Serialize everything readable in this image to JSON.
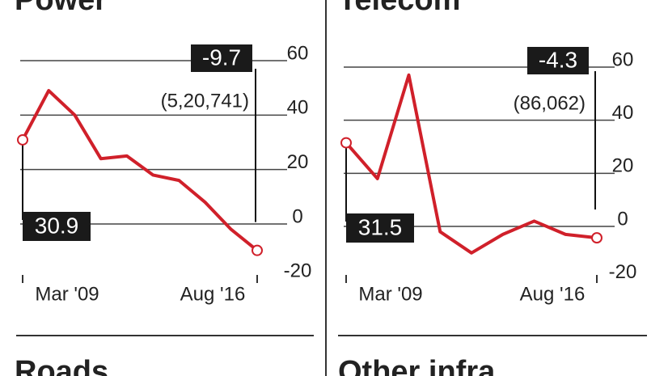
{
  "chart_data": [
    {
      "type": "line",
      "title": "Power",
      "categories": [
        "Mar '09",
        null,
        null,
        null,
        null,
        null,
        null,
        null,
        null,
        "Aug '16"
      ],
      "values": [
        30.9,
        49,
        40,
        24,
        25,
        18,
        16,
        8,
        -2,
        -9.7
      ],
      "color": "#d0202a",
      "ylim": [
        -20,
        60
      ],
      "yticks": [
        -20,
        0,
        20,
        40,
        60
      ],
      "grid": true,
      "annotation": "(5,20,741)"
    },
    {
      "type": "line",
      "title": "Telecom",
      "categories": [
        "Mar '09",
        null,
        null,
        null,
        null,
        null,
        null,
        null,
        "Aug '16"
      ],
      "values": [
        31.5,
        18,
        57,
        -2,
        -10,
        -3,
        2,
        -3,
        -4.3
      ],
      "color": "#d0202a",
      "ylim": [
        -20,
        60
      ],
      "yticks": [
        -20,
        0,
        20,
        40,
        60
      ],
      "grid": true,
      "annotation": "(86,062)"
    }
  ],
  "lower_titles": [
    "Roads",
    "Other infra"
  ]
}
